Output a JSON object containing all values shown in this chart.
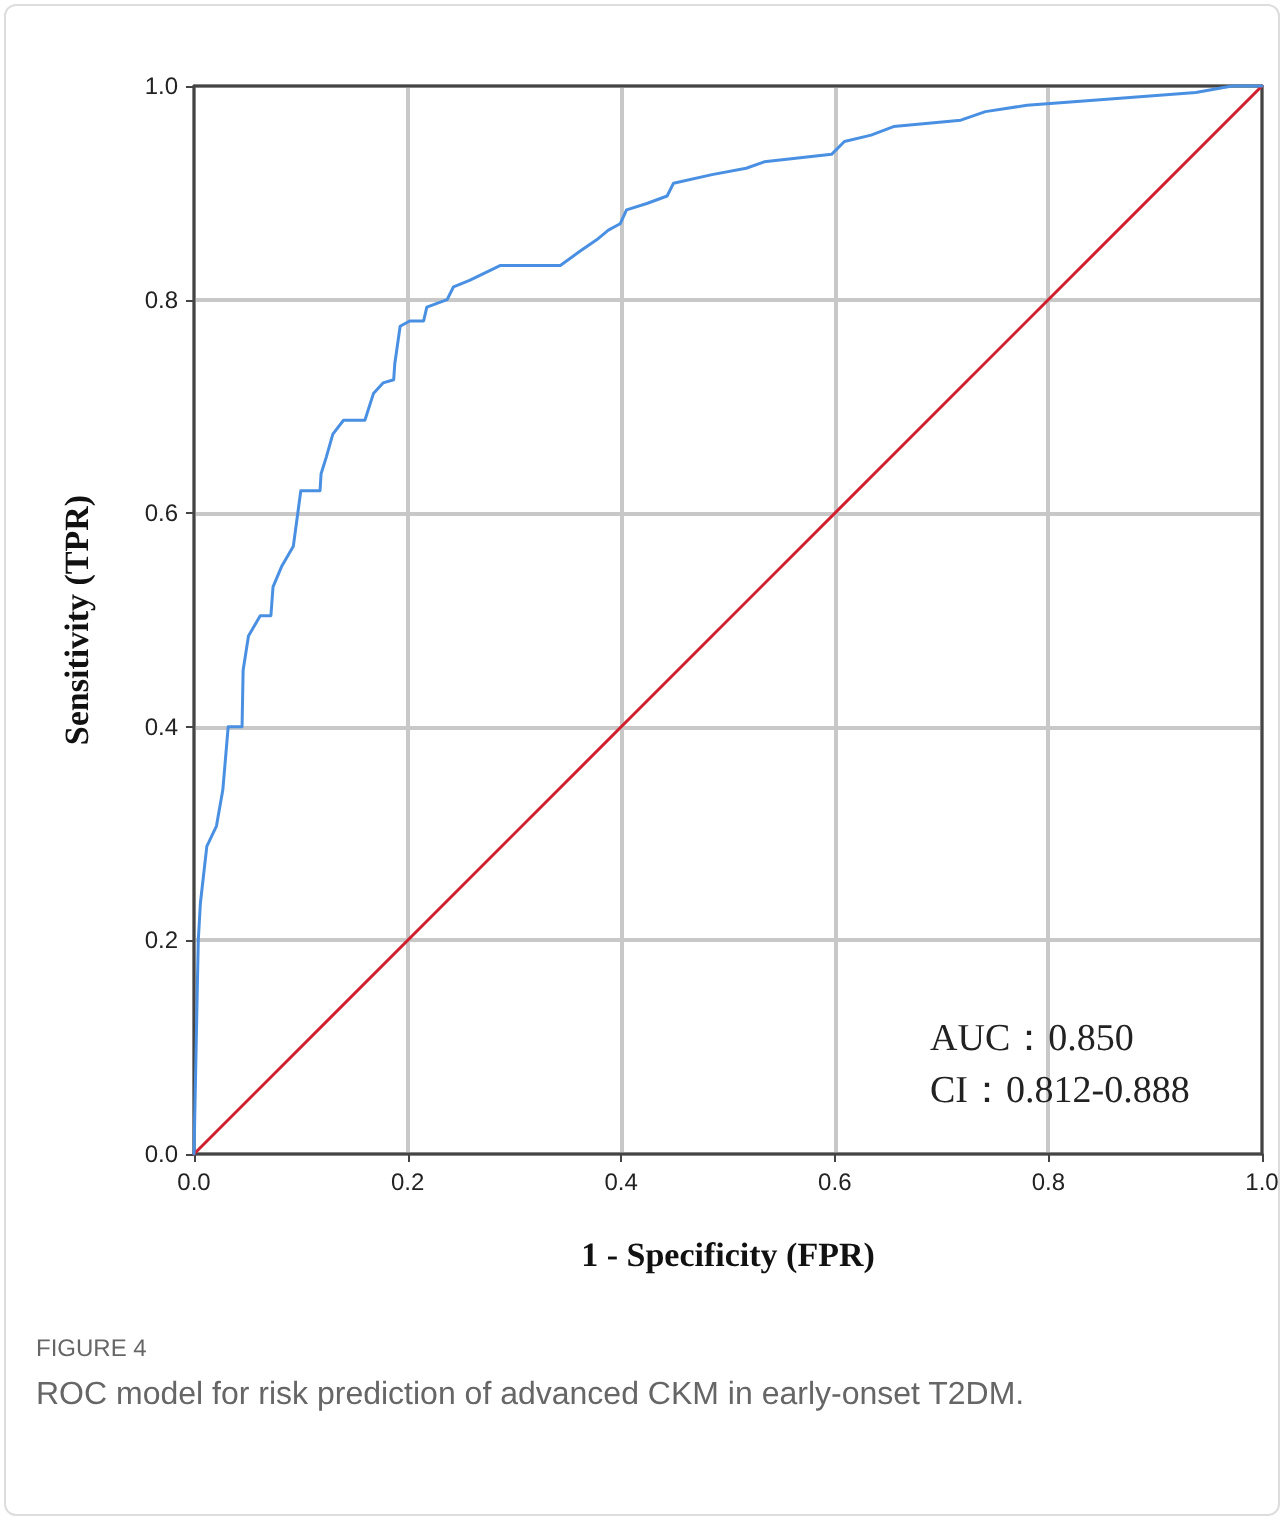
{
  "chart_data": {
    "type": "line",
    "xlabel": "1 - Specificity (FPR)",
    "ylabel": "Sensitivity (TPR)",
    "xlim": [
      0,
      1
    ],
    "ylim": [
      0,
      1
    ],
    "xticks": [
      {
        "value": 0,
        "label": "0.0"
      },
      {
        "value": 0.2,
        "label": "0.2"
      },
      {
        "value": 0.4,
        "label": "0.4"
      },
      {
        "value": 0.6,
        "label": "0.6"
      },
      {
        "value": 0.8,
        "label": "0.8"
      },
      {
        "value": 1,
        "label": "1.0"
      }
    ],
    "yticks": [
      {
        "value": 0,
        "label": "0.0"
      },
      {
        "value": 0.2,
        "label": "0.2"
      },
      {
        "value": 0.4,
        "label": "0.4"
      },
      {
        "value": 0.6,
        "label": "0.6"
      },
      {
        "value": 0.8,
        "label": "0.8"
      },
      {
        "value": 1,
        "label": "1.0"
      }
    ],
    "grid": true,
    "marker": "none",
    "line_style": "solid",
    "series": [
      {
        "color": "#4a90e2",
        "x": [
          0,
          0.004,
          0.006,
          0.012,
          0.021,
          0.027,
          0.032,
          0.045,
          0.046,
          0.051,
          0.062,
          0.072,
          0.074,
          0.082,
          0.093,
          0.1,
          0.118,
          0.119,
          0.124,
          0.13,
          0.14,
          0.16,
          0.168,
          0.177,
          0.187,
          0.188,
          0.193,
          0.202,
          0.215,
          0.218,
          0.237,
          0.243,
          0.258,
          0.287,
          0.343,
          0.361,
          0.377,
          0.388,
          0.399,
          0.405,
          0.424,
          0.443,
          0.449,
          0.485,
          0.517,
          0.534,
          0.597,
          0.609,
          0.634,
          0.655,
          0.718,
          0.741,
          0.78,
          0.861,
          0.938,
          0.972,
          1
        ],
        "values": [
          0,
          0.2,
          0.235,
          0.288,
          0.307,
          0.341,
          0.4,
          0.4,
          0.453,
          0.485,
          0.504,
          0.504,
          0.531,
          0.55,
          0.569,
          0.621,
          0.621,
          0.637,
          0.653,
          0.674,
          0.687,
          0.687,
          0.712,
          0.722,
          0.725,
          0.74,
          0.775,
          0.78,
          0.78,
          0.793,
          0.8,
          0.812,
          0.818,
          0.832,
          0.832,
          0.845,
          0.856,
          0.865,
          0.871,
          0.884,
          0.89,
          0.897,
          0.909,
          0.917,
          0.923,
          0.929,
          0.936,
          0.948,
          0.954,
          0.962,
          0.968,
          0.976,
          0.982,
          0.988,
          0.994,
          1,
          1
        ]
      },
      {
        "color": "#d0202e",
        "x": [
          0,
          1
        ],
        "values": [
          0,
          1
        ]
      }
    ],
    "annotations": [
      "AUC：0.850",
      "CI：0.812-0.888",
      "FIGURE 4",
      "ROC model for risk prediction of advanced CKM in early-onset T2DM."
    ]
  }
}
